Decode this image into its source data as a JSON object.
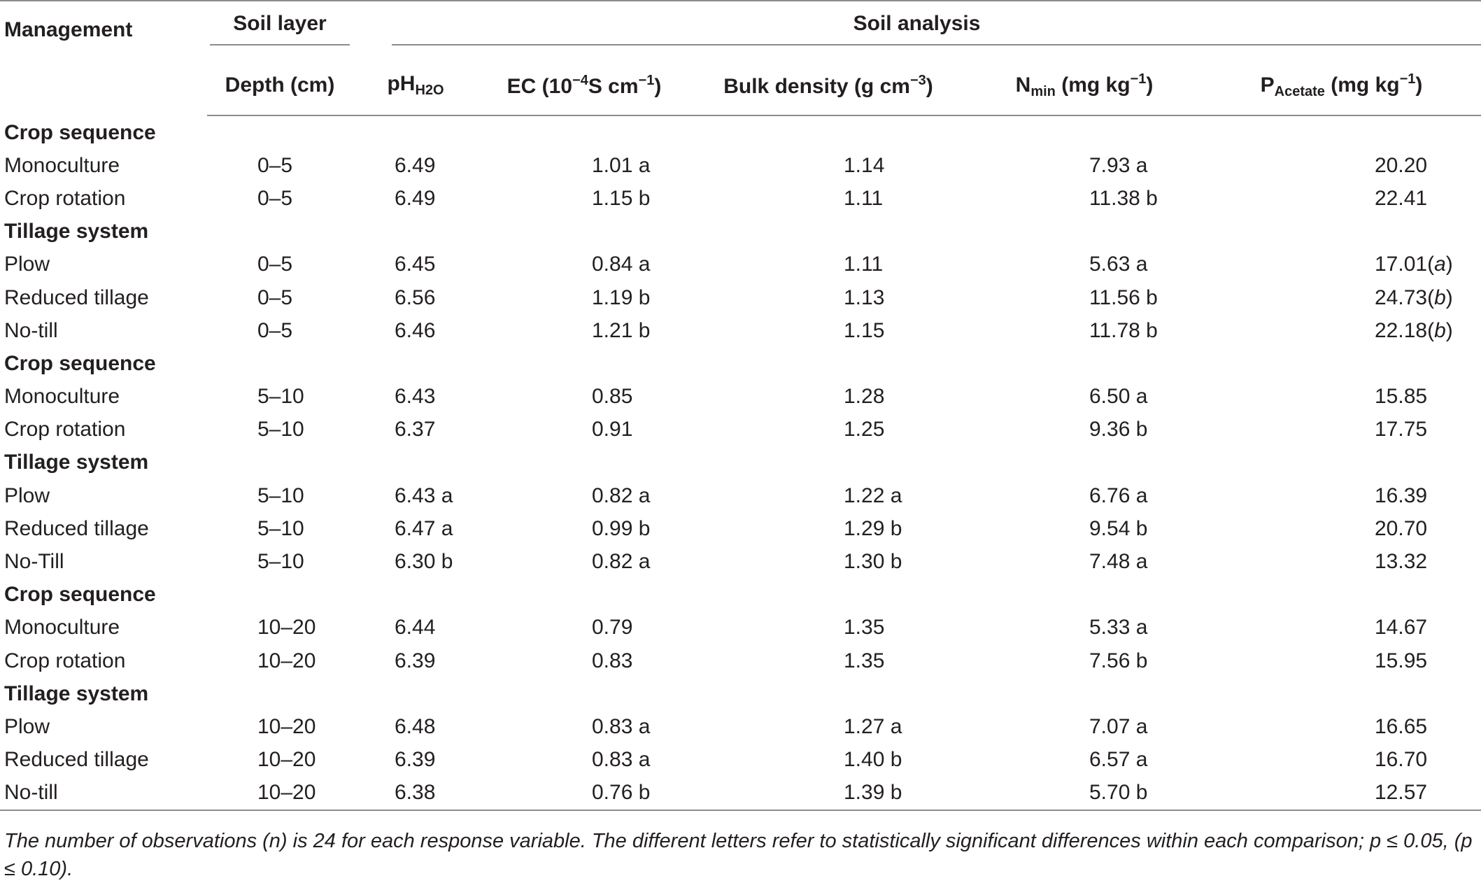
{
  "headers": {
    "management": "Management",
    "soil_layer": "Soil layer",
    "soil_analysis": "Soil analysis",
    "depth": "Depth (cm)",
    "ph_base": "pH",
    "ph_sub": "H2O",
    "ec_pre": "EC (10",
    "ec_sup": "−4",
    "ec_mid": "S cm",
    "ec_sup2": "−1",
    "ec_post": ")",
    "bd_pre": "Bulk density (g cm",
    "bd_sup": "−3",
    "bd_post": ")",
    "n_base": "N",
    "n_sub": "min",
    "n_post": " (mg kg",
    "n_sup": "−1",
    "n_end": ")",
    "p_base": "P",
    "p_sub": "Acetate",
    "p_post": " (mg kg",
    "p_sup": "−1",
    "p_end": ")"
  },
  "rows": [
    {
      "group": "Crop sequence"
    },
    {
      "label": "Monoculture",
      "depth": "0–5",
      "ph": "6.49",
      "ec": "1.01 a",
      "bd": "1.14",
      "n": "7.93 a",
      "p": "20.20"
    },
    {
      "label": "Crop rotation",
      "depth": "0–5",
      "ph": "6.49",
      "ec": "1.15 b",
      "bd": "1.11",
      "n": "11.38 b",
      "p": "22.41"
    },
    {
      "group": "Tillage system"
    },
    {
      "label": "Plow",
      "depth": "0–5",
      "ph": "6.45",
      "ec": "0.84 a",
      "bd": "1.11",
      "n": "5.63 a",
      "p": "17.01",
      "p_letter": "a"
    },
    {
      "label": "Reduced tillage",
      "depth": "0–5",
      "ph": "6.56",
      "ec": "1.19 b",
      "bd": "1.13",
      "n": "11.56 b",
      "p": "24.73",
      "p_letter": "b"
    },
    {
      "label": "No-till",
      "depth": "0–5",
      "ph": "6.46",
      "ec": "1.21 b",
      "bd": "1.15",
      "n": "11.78 b",
      "p": "22.18",
      "p_letter": "b"
    },
    {
      "group": "Crop sequence"
    },
    {
      "label": "Monoculture",
      "depth": "5–10",
      "ph": "6.43",
      "ec": "0.85",
      "bd": "1.28",
      "n": "6.50 a",
      "p": "15.85"
    },
    {
      "label": "Crop rotation",
      "depth": "5–10",
      "ph": "6.37",
      "ec": "0.91",
      "bd": "1.25",
      "n": "9.36 b",
      "p": "17.75"
    },
    {
      "group": "Tillage system"
    },
    {
      "label": "Plow",
      "depth": "5–10",
      "ph": "6.43 a",
      "ec": "0.82 a",
      "bd": "1.22 a",
      "n": "6.76 a",
      "p": "16.39"
    },
    {
      "label": "Reduced tillage",
      "depth": "5–10",
      "ph": "6.47 a",
      "ec": "0.99 b",
      "bd": "1.29 b",
      "n": "9.54 b",
      "p": "20.70"
    },
    {
      "label": "No-Till",
      "depth": "5–10",
      "ph": "6.30 b",
      "ec": "0.82 a",
      "bd": "1.30 b",
      "n": "7.48 a",
      "p": "13.32"
    },
    {
      "group": "Crop sequence"
    },
    {
      "label": "Monoculture",
      "depth": "10–20",
      "ph": "6.44",
      "ec": "0.79",
      "bd": "1.35",
      "n": "5.33 a",
      "p": "14.67"
    },
    {
      "label": "Crop rotation",
      "depth": "10–20",
      "ph": "6.39",
      "ec": "0.83",
      "bd": "1.35",
      "n": "7.56 b",
      "p": "15.95"
    },
    {
      "group": "Tillage system"
    },
    {
      "label": "Plow",
      "depth": "10–20",
      "ph": "6.48",
      "ec": "0.83 a",
      "bd": "1.27 a",
      "n": "7.07 a",
      "p": "16.65"
    },
    {
      "label": "Reduced tillage",
      "depth": "10–20",
      "ph": "6.39",
      "ec": "0.83 a",
      "bd": "1.40 b",
      "n": "6.57 a",
      "p": "16.70"
    },
    {
      "label": "No-till",
      "depth": "10–20",
      "ph": "6.38",
      "ec": "0.76 b",
      "bd": "1.39 b",
      "n": "5.70 b",
      "p": "12.57"
    }
  ],
  "footnote": "The number of observations (n) is 24 for each response variable. The different letters refer to statistically significant differences within each comparison; p ≤ 0.05, (p ≤ 0.10)."
}
